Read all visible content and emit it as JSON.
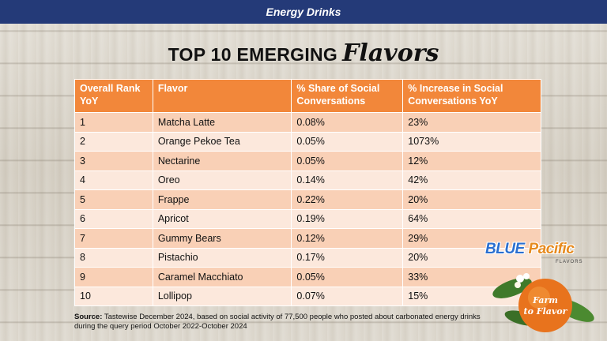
{
  "header": {
    "title": "Energy Drinks"
  },
  "heading": {
    "main": "TOP 10 EMERGING",
    "script": "Flavors"
  },
  "table": {
    "columns": [
      "Overall Rank YoY",
      "Flavor",
      "% Share of Social Conversations",
      "% Increase in Social Conversations YoY"
    ],
    "rows": [
      [
        "1",
        "Matcha Latte",
        "0.08%",
        "23%"
      ],
      [
        "2",
        "Orange Pekoe Tea",
        "0.05%",
        "1073%"
      ],
      [
        "3",
        "Nectarine",
        "0.05%",
        "12%"
      ],
      [
        "4",
        "Oreo",
        "0.14%",
        "42%"
      ],
      [
        "5",
        "Frappe",
        "0.22%",
        "20%"
      ],
      [
        "6",
        "Apricot",
        "0.19%",
        "64%"
      ],
      [
        "7",
        "Gummy Bears",
        "0.12%",
        "29%"
      ],
      [
        "8",
        "Pistachio",
        "0.17%",
        "20%"
      ],
      [
        "9",
        "Caramel Macchiato",
        "0.05%",
        "33%"
      ],
      [
        "10",
        "Lollipop",
        "0.07%",
        "15%"
      ]
    ]
  },
  "source": {
    "label": "Source:",
    "text": "Tastewise December 2024, based on social activity of 77,500 people who posted about carbonated energy drinks during the query period October 2022-October 2024"
  },
  "logo": {
    "brand_a": "BLUE",
    "brand_b": "Pacific",
    "sub": "FLAVORS",
    "badge_line1": "Farm",
    "badge_line2": "to Flavor"
  },
  "colors": {
    "header_bar": "#243a78",
    "table_header": "#f2873a",
    "row_dark": "#f9d0b6",
    "row_light": "#fce8dc"
  }
}
